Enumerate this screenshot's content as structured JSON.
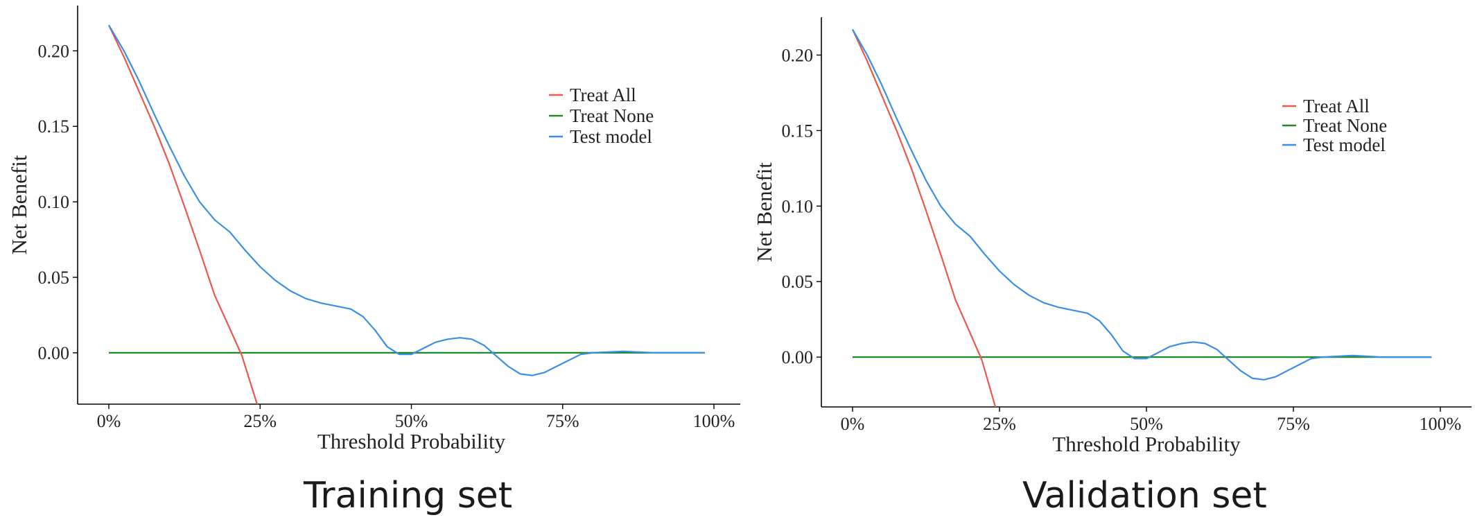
{
  "colors": {
    "treat_all": "#E8584B",
    "treat_none": "#1E8B22",
    "test_model": "#3A8EE6",
    "axis": "#000000"
  },
  "captions": {
    "training": "Training set",
    "validation": "Validation set"
  },
  "chart_data": [
    {
      "type": "line",
      "title": "Training set",
      "xlabel": "Threshold Probability",
      "ylabel": "Net Benefit",
      "xlim": [
        0,
        1
      ],
      "ylim": [
        -0.034,
        0.23
      ],
      "x_ticks": [
        0,
        0.25,
        0.5,
        0.75,
        1.0
      ],
      "x_tick_labels": [
        "0%",
        "25%",
        "50%",
        "75%",
        "100%"
      ],
      "y_ticks": [
        0.0,
        0.05,
        0.1,
        0.15,
        0.2
      ],
      "y_tick_labels": [
        "0.00",
        "0.05",
        "0.10",
        "0.15",
        "0.20"
      ],
      "grid": false,
      "legend_position": "top-right",
      "series": [
        {
          "name": "Treat All",
          "color": "#E8584B",
          "x": [
            0.0,
            0.025,
            0.05,
            0.075,
            0.1,
            0.125,
            0.15,
            0.175,
            0.2,
            0.22,
            0.245
          ],
          "y": [
            0.217,
            0.196,
            0.173,
            0.15,
            0.125,
            0.097,
            0.068,
            0.038,
            0.016,
            -0.002,
            -0.034
          ]
        },
        {
          "name": "Treat None",
          "color": "#1E8B22",
          "x": [
            0.0,
            0.985
          ],
          "y": [
            0.0,
            0.0
          ]
        },
        {
          "name": "Test model",
          "color": "#3A8EE6",
          "x": [
            0.0,
            0.025,
            0.05,
            0.075,
            0.1,
            0.125,
            0.15,
            0.175,
            0.2,
            0.225,
            0.25,
            0.275,
            0.3,
            0.325,
            0.35,
            0.375,
            0.4,
            0.42,
            0.44,
            0.46,
            0.48,
            0.5,
            0.52,
            0.54,
            0.56,
            0.58,
            0.6,
            0.62,
            0.64,
            0.66,
            0.68,
            0.7,
            0.72,
            0.74,
            0.76,
            0.78,
            0.8,
            0.85,
            0.9,
            0.95,
            0.985
          ],
          "y": [
            0.217,
            0.2,
            0.18,
            0.158,
            0.137,
            0.117,
            0.1,
            0.088,
            0.08,
            0.068,
            0.057,
            0.048,
            0.041,
            0.036,
            0.033,
            0.031,
            0.029,
            0.024,
            0.015,
            0.004,
            -0.001,
            -0.001,
            0.003,
            0.007,
            0.009,
            0.01,
            0.009,
            0.005,
            -0.002,
            -0.009,
            -0.014,
            -0.015,
            -0.013,
            -0.009,
            -0.005,
            -0.001,
            0.0,
            0.001,
            0.0,
            0.0,
            0.0
          ]
        }
      ]
    },
    {
      "type": "line",
      "title": "Validation set",
      "xlabel": "Threshold Probability",
      "ylabel": "Net Benefit",
      "xlim": [
        0,
        1
      ],
      "ylim": [
        -0.033,
        0.225
      ],
      "x_ticks": [
        0,
        0.25,
        0.5,
        0.75,
        1.0
      ],
      "x_tick_labels": [
        "0%",
        "25%",
        "50%",
        "75%",
        "100%"
      ],
      "y_ticks": [
        0.0,
        0.05,
        0.1,
        0.15,
        0.2
      ],
      "y_tick_labels": [
        "0.00",
        "0.05",
        "0.10",
        "0.15",
        "0.20"
      ],
      "grid": false,
      "legend_position": "top-right",
      "series": [
        {
          "name": "Treat All",
          "color": "#E8584B",
          "x": [
            0.0,
            0.025,
            0.05,
            0.075,
            0.1,
            0.125,
            0.15,
            0.175,
            0.2,
            0.22,
            0.243
          ],
          "y": [
            0.217,
            0.196,
            0.173,
            0.15,
            0.125,
            0.097,
            0.068,
            0.038,
            0.016,
            -0.002,
            -0.033
          ]
        },
        {
          "name": "Treat None",
          "color": "#1E8B22",
          "x": [
            0.0,
            0.985
          ],
          "y": [
            0.0,
            0.0
          ]
        },
        {
          "name": "Test model",
          "color": "#3A8EE6",
          "x": [
            0.0,
            0.025,
            0.05,
            0.075,
            0.1,
            0.125,
            0.15,
            0.175,
            0.2,
            0.225,
            0.25,
            0.275,
            0.3,
            0.325,
            0.35,
            0.375,
            0.4,
            0.42,
            0.44,
            0.46,
            0.48,
            0.5,
            0.52,
            0.54,
            0.56,
            0.58,
            0.6,
            0.62,
            0.64,
            0.66,
            0.68,
            0.7,
            0.72,
            0.74,
            0.76,
            0.78,
            0.8,
            0.85,
            0.9,
            0.95,
            0.985
          ],
          "y": [
            0.217,
            0.2,
            0.18,
            0.158,
            0.137,
            0.117,
            0.1,
            0.088,
            0.08,
            0.068,
            0.057,
            0.048,
            0.041,
            0.036,
            0.033,
            0.031,
            0.029,
            0.024,
            0.015,
            0.004,
            -0.001,
            -0.001,
            0.003,
            0.007,
            0.009,
            0.01,
            0.009,
            0.005,
            -0.002,
            -0.009,
            -0.014,
            -0.015,
            -0.013,
            -0.009,
            -0.005,
            -0.001,
            0.0,
            0.001,
            0.0,
            0.0,
            0.0
          ]
        }
      ]
    }
  ]
}
